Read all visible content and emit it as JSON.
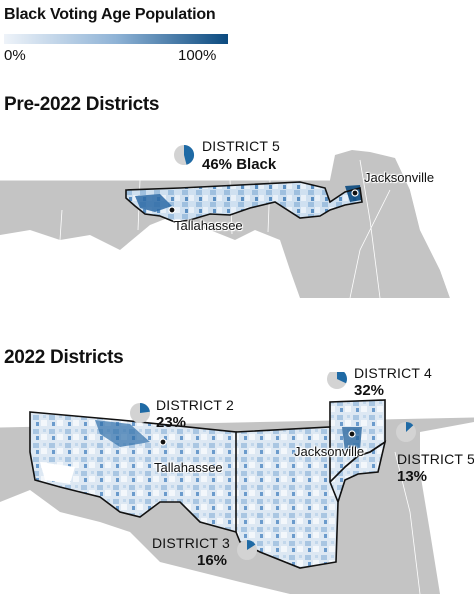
{
  "legend": {
    "title": "Black Voting Age Population",
    "min_label": "0%",
    "max_label": "100%",
    "color_low": "#eef3f9",
    "color_high": "#0b4a7f"
  },
  "maps": [
    {
      "title": "Pre-2022 Districts",
      "districts": [
        {
          "name": "DISTRICT 5",
          "share_label": "46% Black",
          "black_share": 0.46
        }
      ],
      "cities": [
        "Jacksonville",
        "Tallahassee"
      ]
    },
    {
      "title": "2022 Districts",
      "districts": [
        {
          "name": "DISTRICT 2",
          "share_label": "23%",
          "black_share": 0.23
        },
        {
          "name": "DISTRICT 4",
          "share_label": "32%",
          "black_share": 0.32
        },
        {
          "name": "DISTRICT 5",
          "share_label": "13%",
          "black_share": 0.13
        },
        {
          "name": "DISTRICT 3",
          "share_label": "16%",
          "black_share": 0.16
        }
      ],
      "cities": [
        "Tallahassee",
        "Jacksonville"
      ]
    }
  ],
  "colors": {
    "land": "#c4c4c4",
    "water": "#ffffff",
    "pie_fill": "#1f6aa5",
    "pie_rest": "#d3d3d3",
    "district_outline": "#111111"
  }
}
